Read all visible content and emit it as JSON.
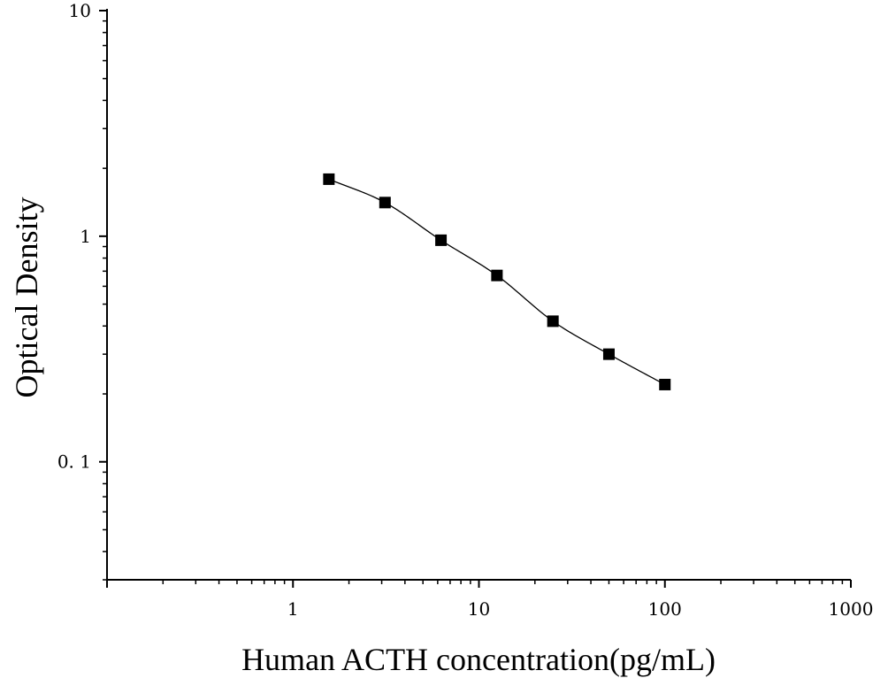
{
  "chart_data": {
    "type": "scatter",
    "title": "",
    "xlabel": "Human ACTH concentration(pg/mL)",
    "ylabel": "Optical Density",
    "xscale": "log",
    "yscale": "log",
    "xlim": [
      0.1,
      1000
    ],
    "ylim": [
      0.03,
      10
    ],
    "x_tick_labels": [
      "1",
      "10",
      "100",
      "1000"
    ],
    "x_tick_values": [
      1,
      10,
      100,
      1000
    ],
    "y_tick_labels": [
      "0. 1",
      "1",
      "10"
    ],
    "y_tick_values": [
      0.1,
      1,
      10
    ],
    "grid": false,
    "legend": false,
    "marker": "square",
    "fit": "smooth curve through points",
    "x": [
      1.56,
      3.125,
      6.25,
      12.5,
      25,
      50,
      100
    ],
    "y": [
      1.79,
      1.41,
      0.96,
      0.67,
      0.42,
      0.3,
      0.22
    ],
    "colors": {
      "axis": "#000000",
      "marker": "#000000",
      "curve": "#000000"
    }
  }
}
